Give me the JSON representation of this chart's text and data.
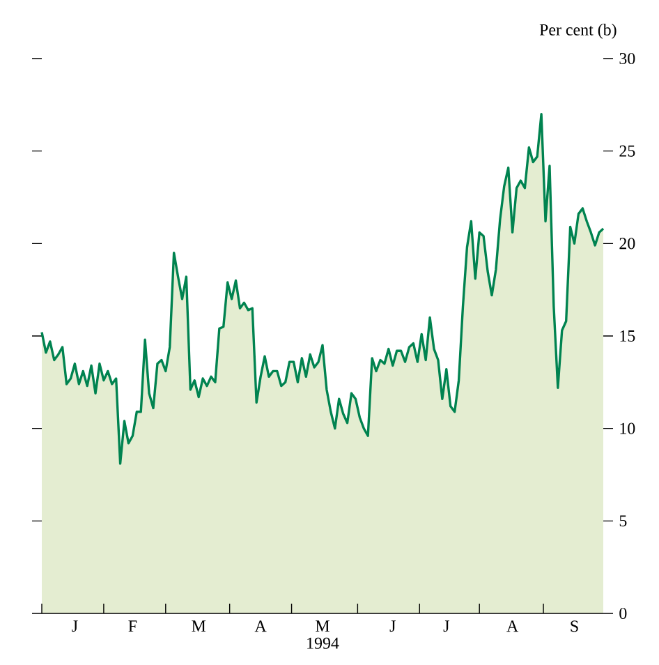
{
  "chart_data": {
    "type": "area",
    "color": "#008350",
    "ylabel": "Per cent (b)",
    "xlabel": "1994",
    "ylim": [
      0,
      30
    ],
    "yticks": [
      0,
      5,
      10,
      15,
      20,
      25,
      30
    ],
    "categories": [
      null,
      null,
      null,
      null,
      null,
      null,
      null,
      null,
      "J",
      null,
      null,
      null,
      null,
      null,
      null,
      null,
      null,
      null,
      null,
      null,
      null,
      null,
      "F",
      null,
      null,
      null,
      null,
      null,
      null,
      null,
      null,
      null,
      null,
      null,
      null,
      null,
      null,
      null,
      "M",
      null,
      null,
      null,
      null,
      null,
      null,
      null,
      null,
      null,
      null,
      null,
      null,
      null,
      null,
      "A",
      null,
      null,
      null,
      null,
      null,
      null,
      null,
      null,
      null,
      null,
      null,
      null,
      null,
      null,
      "M",
      null,
      null,
      null,
      null,
      null,
      null,
      null,
      null,
      null,
      null,
      null,
      null,
      null,
      null,
      null,
      null,
      "J",
      null,
      null,
      null,
      null,
      null,
      null,
      null,
      null,
      null,
      null,
      null,
      null,
      "J",
      null,
      null,
      null,
      null,
      null,
      null,
      null,
      null,
      null,
      null,
      null,
      null,
      null,
      null,
      null,
      "A",
      null,
      null,
      null,
      null,
      null,
      null,
      null,
      null,
      null,
      null,
      null,
      null,
      null,
      null,
      "S",
      null,
      null,
      null,
      null,
      null,
      null,
      null
    ],
    "values": [
      15.2,
      14.1,
      14.7,
      13.7,
      14.0,
      14.4,
      12.4,
      12.7,
      13.5,
      12.4,
      13.1,
      12.3,
      13.4,
      11.9,
      13.5,
      12.6,
      13.1,
      12.4,
      12.7,
      8.1,
      10.4,
      9.2,
      9.6,
      10.9,
      10.9,
      14.8,
      11.9,
      11.1,
      13.5,
      13.7,
      13.1,
      14.4,
      19.5,
      18.2,
      17.0,
      18.2,
      12.1,
      12.6,
      11.7,
      12.7,
      12.3,
      12.8,
      12.5,
      15.4,
      15.5,
      17.9,
      17.0,
      18.0,
      16.5,
      16.8,
      16.4,
      16.5,
      11.4,
      12.8,
      13.9,
      12.8,
      13.1,
      13.1,
      12.3,
      12.5,
      13.6,
      13.6,
      12.5,
      13.8,
      12.8,
      14.0,
      13.3,
      13.6,
      14.5,
      12.1,
      10.9,
      10.0,
      11.6,
      10.8,
      10.3,
      11.9,
      11.6,
      10.6,
      10.0,
      9.6,
      13.8,
      13.1,
      13.7,
      13.5,
      14.3,
      13.4,
      14.2,
      14.2,
      13.6,
      14.4,
      14.6,
      13.6,
      15.1,
      13.7,
      16.0,
      14.3,
      13.7,
      11.6,
      13.2,
      11.2,
      10.9,
      12.6,
      16.6,
      19.8,
      21.2,
      18.1,
      20.6,
      20.4,
      18.5,
      17.2,
      18.6,
      21.3,
      23.1,
      24.1,
      20.6,
      23.0,
      23.4,
      23.0,
      25.2,
      24.4,
      24.7,
      27.0,
      21.2,
      24.2,
      16.6,
      12.2,
      15.3,
      15.8,
      20.9,
      20.0,
      21.6,
      21.9,
      21.2,
      20.6,
      19.9,
      20.6,
      20.8
    ]
  }
}
